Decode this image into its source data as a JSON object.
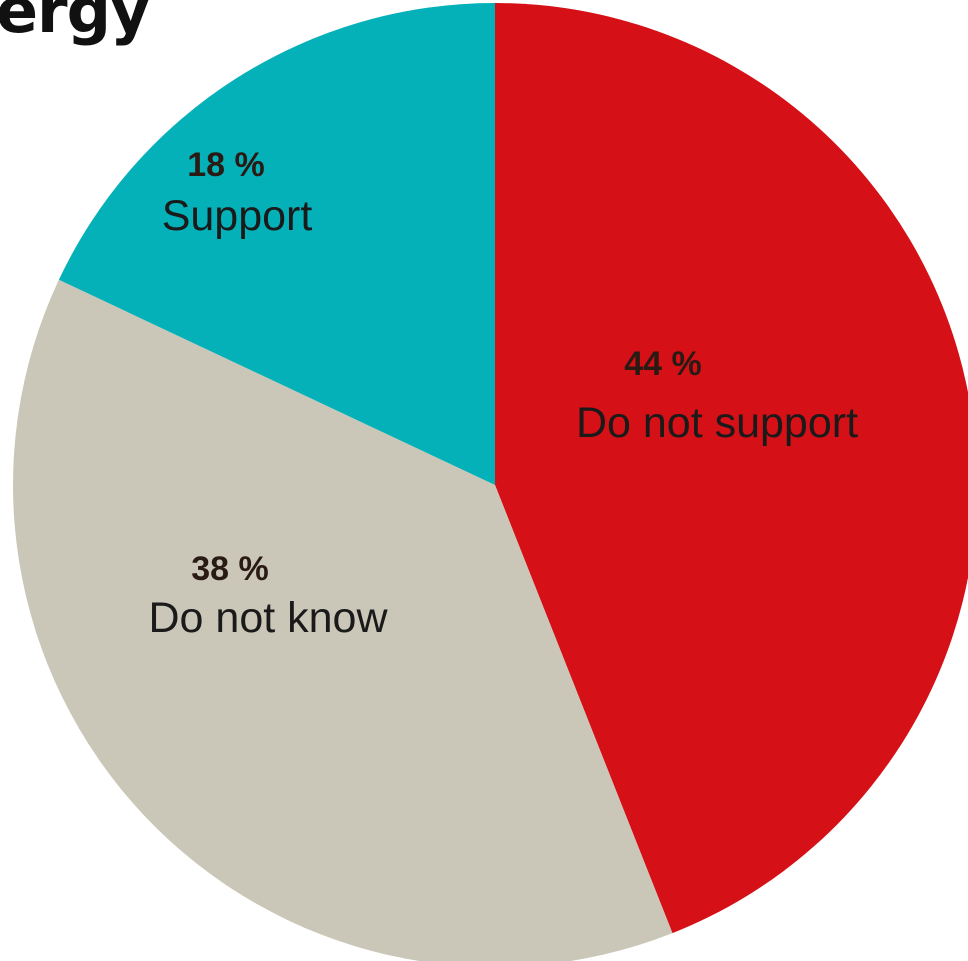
{
  "chart_data": {
    "type": "pie",
    "title": "ergy",
    "slices": [
      {
        "label": "Do not support",
        "value": 44,
        "pct_text": "44 %",
        "color": "#d51016"
      },
      {
        "label": "Do not know",
        "value": 38,
        "pct_text": "38 %",
        "color": "#cbc7b8"
      },
      {
        "label": "Support",
        "value": 18,
        "pct_text": "18 %",
        "color": "#04b1b8"
      }
    ],
    "start": "12 o'clock",
    "direction": "clockwise"
  }
}
